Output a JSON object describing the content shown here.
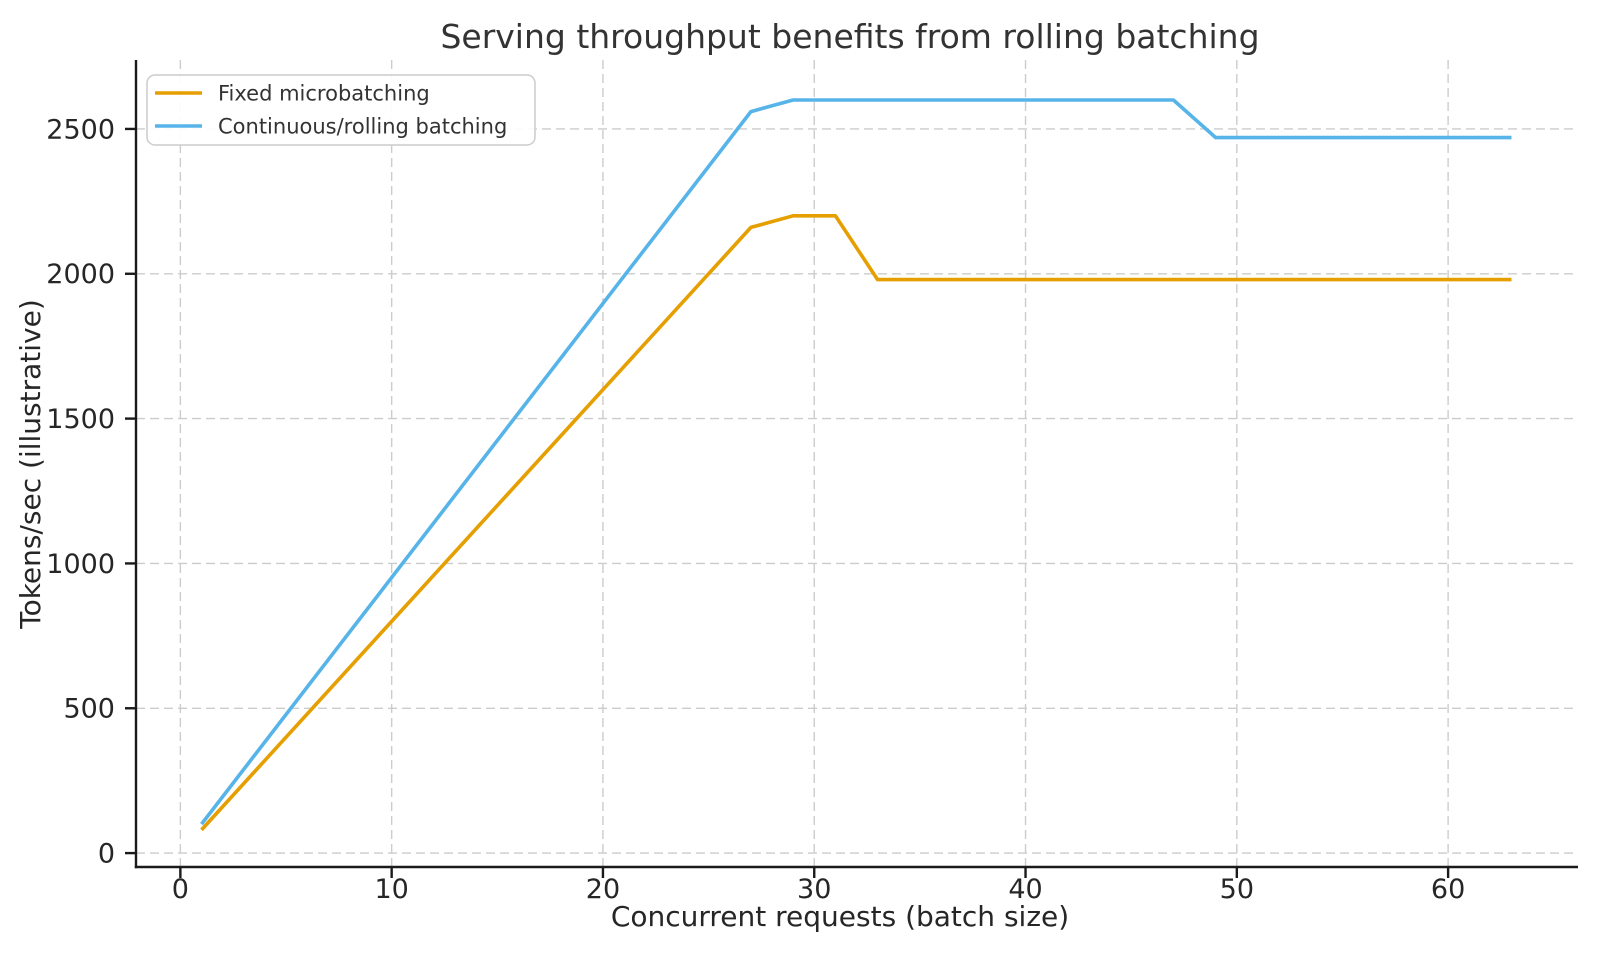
{
  "chart_data": {
    "type": "line",
    "title": "Serving throughput benefits from rolling batching",
    "xlabel": "Concurrent requests (batch size)",
    "ylabel": "Tokens/sec (illustrative)",
    "xlim": [
      -2.1,
      66.1
    ],
    "ylim": [
      -48,
      2738
    ],
    "x_ticks": [
      0,
      10,
      20,
      30,
      40,
      50,
      60
    ],
    "y_ticks": [
      0,
      500,
      1000,
      1500,
      2000,
      2500
    ],
    "grid": true,
    "grid_style": "dashed",
    "grid_color": "#cccccc",
    "spine_color": "#1a1a1a",
    "text_color": "#333333",
    "legend_position": "upper left",
    "series": [
      {
        "name": "Fixed microbatching",
        "color": "#E69F00",
        "points": [
          [
            1,
            80
          ],
          [
            27,
            2160
          ],
          [
            29,
            2200
          ],
          [
            31,
            2200
          ],
          [
            33,
            1980
          ],
          [
            63,
            1980
          ]
        ]
      },
      {
        "name": "Continuous/rolling batching",
        "color": "#56B4E9",
        "points": [
          [
            1,
            100
          ],
          [
            27,
            2560
          ],
          [
            29,
            2600
          ],
          [
            47,
            2600
          ],
          [
            49,
            2470
          ],
          [
            63,
            2470
          ]
        ]
      }
    ]
  }
}
